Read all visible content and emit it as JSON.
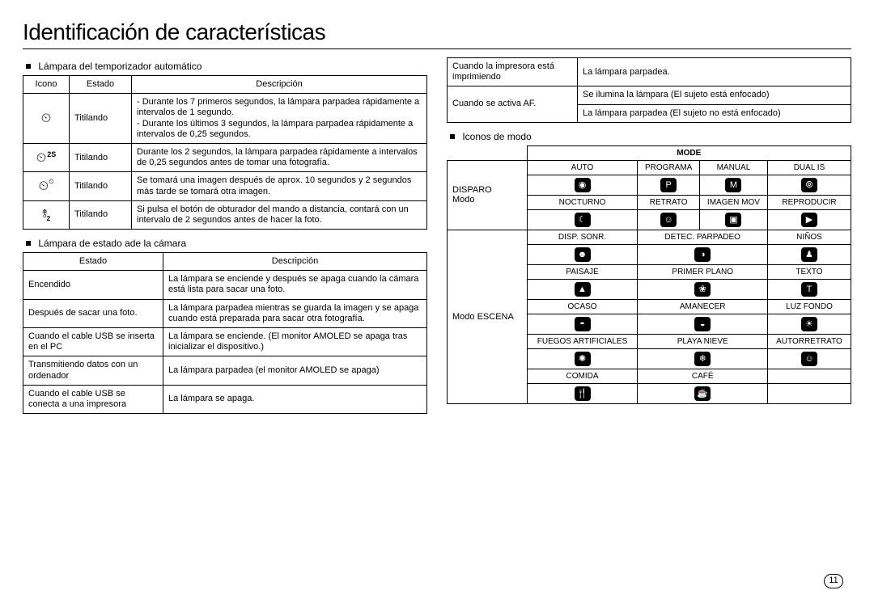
{
  "page_title": "Identificación de características",
  "page_number": "11",
  "sections": {
    "timer_lamp": {
      "heading": "Lámpara del temporizador automático",
      "col_icon": "Icono",
      "col_state": "Estado",
      "col_desc": "Descripción",
      "rows": [
        {
          "icon_glyph": "⏲",
          "icon_key": "timer-std",
          "state": "Titilando",
          "desc": "- Durante los 7 primeros segundos, la lámpara parpadea rápidamente a intervalos de 1 segundo.\n- Durante los últimos 3 segundos, la lámpara parpadea rápidamente a intervalos de 0,25 segundos."
        },
        {
          "icon_glyph": "⏲",
          "icon_sup": "2S",
          "icon_key": "timer-2s",
          "state": "Titilando",
          "desc": "Durante los 2 segundos, la lámpara parpadea rápidamente a intervalos de 0,25 segundos antes de tomar una fotografía."
        },
        {
          "icon_glyph": "⏲",
          "icon_sup_sm": "⏲",
          "icon_key": "timer-double",
          "state": "Titilando",
          "desc": "Se tomará una imagen después de aprox. 10 segundos y 2 segundos más tarde se tomará otra imagen."
        },
        {
          "icon_glyph": "⥉",
          "icon_sub": "2",
          "icon_key": "remote-2",
          "state": "Titilando",
          "desc": "Si pulsa el botón de obturador del mando a distancia, contará con un intervalo de 2 segundos antes de hacer la foto."
        }
      ]
    },
    "status_lamp": {
      "heading": "Lámpara de estado ade la cámara",
      "col_state": "Estado",
      "col_desc": "Descripción",
      "rows": [
        {
          "state": "Encendido",
          "desc": "La lámpara se enciende y después se apaga cuando la cámara está lista para sacar una foto."
        },
        {
          "state": "Después de sacar una foto.",
          "desc": "La lámpara parpadea mientras se guarda la imagen y se apaga cuando está preparada para sacar otra fotografía."
        },
        {
          "state": "Cuando el cable USB se inserta en el PC",
          "desc": "La lámpara se enciende.  (El monitor AMOLED se apaga tras inicializar el dispositivo.)"
        },
        {
          "state": "Transmitiendo datos con un ordenador",
          "desc": "La lámpara parpadea (el monitor AMOLED se apaga)"
        },
        {
          "state": "Cuando el cable USB se conecta a una impresora",
          "desc": "La lámpara se apaga."
        }
      ]
    },
    "printer_af": {
      "rows": [
        {
          "state": "Cuando la impresora está imprimiendo",
          "desc": "La lámpara parpadea."
        },
        {
          "state_rowspan2": "Cuando se activa AF.",
          "desc1": "Se ilumina la lámpara (El sujeto está enfocado)",
          "desc2": "La lámpara parpadea (El sujeto no está enfocado)"
        }
      ]
    },
    "mode_icons": {
      "heading": "Iconos de modo",
      "header": "MODE",
      "disparo_label": "DISPARO Modo",
      "escena_label": "Modo ESCENA",
      "disparo_rows": [
        {
          "labels": [
            "AUTO",
            "PROGRAMA",
            "MANUAL",
            "DUAL IS"
          ],
          "glyphs": [
            "◉",
            "P",
            "M",
            "⦾"
          ],
          "names": [
            "auto",
            "programa",
            "manual",
            "dual-is"
          ]
        },
        {
          "labels": [
            "NOCTURNO",
            "RETRATO",
            "IMAGEN MOV",
            "REPRODUCIR"
          ],
          "glyphs": [
            "☾",
            "☺",
            "▣",
            "▶"
          ],
          "names": [
            "nocturno",
            "retrato",
            "imagen-mov",
            "reproducir"
          ]
        }
      ],
      "escena_rows": [
        {
          "labels": [
            "DISP. SONR.",
            "DETEC. PARPADEO",
            "NIÑOS"
          ],
          "glyphs": [
            "☻",
            "◑",
            "♟"
          ],
          "names": [
            "disp-sonr",
            "detec-parpadeo",
            "ninos"
          ]
        },
        {
          "labels": [
            "PAISAJE",
            "PRIMER PLANO",
            "TEXTO"
          ],
          "glyphs": [
            "▲",
            "❀",
            "T"
          ],
          "names": [
            "paisaje",
            "primer-plano",
            "texto"
          ]
        },
        {
          "labels": [
            "OCASO",
            "AMANECER",
            "LUZ FONDO"
          ],
          "glyphs": [
            "◓",
            "◒",
            "☀"
          ],
          "names": [
            "ocaso",
            "amanecer",
            "luz-fondo"
          ]
        },
        {
          "labels": [
            "FUEGOS ARTIFICIALES",
            "PLAYA NIEVE",
            "AUTORRETRATO"
          ],
          "glyphs": [
            "✺",
            "❄",
            "☺"
          ],
          "names": [
            "fuegos-artificiales",
            "playa-nieve",
            "autorretrato"
          ]
        },
        {
          "labels": [
            "COMIDA",
            "CAFÉ",
            ""
          ],
          "glyphs": [
            "🍴",
            "☕",
            ""
          ],
          "names": [
            "comida",
            "cafe",
            ""
          ]
        }
      ]
    }
  }
}
